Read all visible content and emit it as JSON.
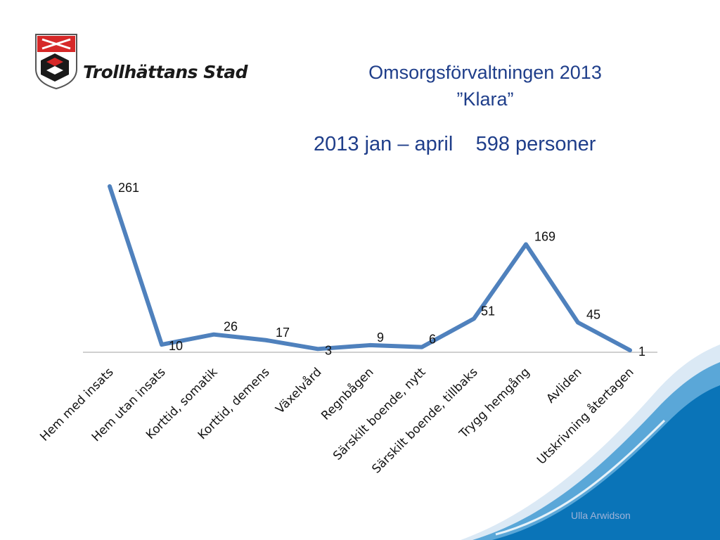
{
  "header": {
    "org_name": "Trollhättans Stad",
    "title_line1": "Omsorgsförvaltningen 2013",
    "title_line2": "”Klara”",
    "period": "2013 jan – april",
    "total": "598 personer"
  },
  "footer": {
    "author": "Ulla Arwidson"
  },
  "colors": {
    "line": "#4f81bd",
    "title": "#1f3e8a",
    "wave_dark": "#0a74b8",
    "wave_light": "#5aa7d8"
  },
  "chart_data": {
    "type": "line",
    "title": "",
    "xlabel": "",
    "ylabel": "",
    "categories": [
      "Hem med insats",
      "Hem utan insats",
      "Korttid, somatik",
      "Korttid, demens",
      "Växelvård",
      "Regnbågen",
      "Särskilt boende, nytt",
      "Särskilt boende, tillbaks",
      "Trygg hemgång",
      "Avliden",
      "Utskrivning återtagen"
    ],
    "values": [
      261,
      10,
      26,
      17,
      3,
      9,
      6,
      51,
      169,
      45,
      1
    ],
    "data_labels": [
      "261",
      "10",
      "26",
      "17",
      "3",
      "9",
      "6",
      "51",
      "169",
      "45",
      "1"
    ],
    "ylim": [
      0,
      261
    ],
    "grid": false,
    "legend": "none"
  }
}
